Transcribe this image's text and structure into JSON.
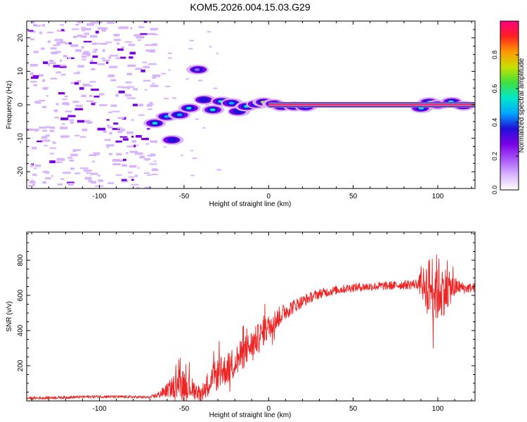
{
  "figure_title": "KOM5.2026.004.15.03.G29",
  "colors": {
    "snr_line": "#ee2222",
    "axis": "#000000",
    "colormap": [
      "#ffffff",
      "#d8b4ff",
      "#a855f7",
      "#7a00e8",
      "#1f10d8",
      "#00a8ff",
      "#00e8c8",
      "#40e040",
      "#c8e000",
      "#ff9900",
      "#ff2020",
      "#ff0080"
    ]
  },
  "chart_data": [
    {
      "type": "heatmap",
      "title": "KOM5.2026.004.15.03.G29",
      "xlabel": "Height of straight line (km)",
      "ylabel": "Frequency (Hz)",
      "xlim": [
        -143,
        122
      ],
      "ylim": [
        -25,
        25
      ],
      "x_ticks": [
        -100,
        -50,
        0,
        50,
        100
      ],
      "y_ticks": [
        -20,
        -10,
        0,
        10,
        20
      ],
      "colorbar": {
        "label": "Normalized spectral amplitude",
        "range": [
          0,
          1
        ],
        "ticks": [
          "0.0",
          "0.2",
          "0.4",
          "0.6",
          "0.8"
        ]
      },
      "tones": [
        {
          "x": -67,
          "f": -5.5,
          "amp": 0.55
        },
        {
          "x": -60,
          "f": -3.5,
          "amp": 0.45
        },
        {
          "x": -57,
          "f": -10.5,
          "amp": 0.35
        },
        {
          "x": -53,
          "f": -3.0,
          "amp": 0.45
        },
        {
          "x": -47,
          "f": -1.0,
          "amp": 0.5
        },
        {
          "x": -42,
          "f": 10.5,
          "amp": 0.2
        },
        {
          "x": -38,
          "f": 1.5,
          "amp": 0.4
        },
        {
          "x": -33,
          "f": -1.5,
          "amp": 0.55
        },
        {
          "x": -28,
          "f": 1.0,
          "amp": 0.5
        },
        {
          "x": -22,
          "f": 0.5,
          "amp": 0.45
        },
        {
          "x": -18,
          "f": -2.0,
          "amp": 0.4
        },
        {
          "x": -13,
          "f": -0.5,
          "amp": 0.5
        },
        {
          "x": -7,
          "f": 0.2,
          "amp": 0.55
        },
        {
          "x": -3,
          "f": 0.8,
          "amp": 0.7
        },
        {
          "x": 3,
          "f": 0.3,
          "amp": 0.65
        },
        {
          "x": 8,
          "f": -0.5,
          "amp": 0.55
        },
        {
          "x": 15,
          "f": -0.5,
          "amp": 0.5
        },
        {
          "x": 22,
          "f": -0.6,
          "amp": 0.45
        },
        {
          "x": 90,
          "f": -1.0,
          "amp": 0.5
        },
        {
          "x": 95,
          "f": 0.8,
          "amp": 0.5
        },
        {
          "x": 100,
          "f": 0.0,
          "amp": 0.55
        },
        {
          "x": 108,
          "f": 0.9,
          "amp": 0.5
        },
        {
          "x": 115,
          "f": -0.3,
          "amp": 0.45
        }
      ],
      "carrier": {
        "x_start": 0,
        "x_end": 122,
        "f": 0,
        "amp": 1.0
      }
    },
    {
      "type": "line",
      "xlabel": "Height of straight line (km)",
      "ylabel": "SNR (v/v)",
      "xlim": [
        -143,
        122
      ],
      "ylim": [
        0,
        960
      ],
      "x_ticks": [
        -100,
        -50,
        0,
        50,
        100
      ],
      "y_ticks": [
        200,
        400,
        600,
        800
      ],
      "series": [
        {
          "name": "SNR",
          "x": [
            -143,
            -120,
            -100,
            -80,
            -70,
            -65,
            -60,
            -55,
            -50,
            -45,
            -40,
            -35,
            -30,
            -25,
            -20,
            -15,
            -10,
            -5,
            0,
            5,
            10,
            15,
            20,
            25,
            30,
            40,
            50,
            60,
            70,
            80,
            88,
            92,
            96,
            100,
            104,
            108,
            112,
            116,
            122
          ],
          "y": [
            15,
            20,
            25,
            22,
            20,
            35,
            60,
            90,
            100,
            70,
            40,
            110,
            150,
            180,
            220,
            270,
            320,
            370,
            420,
            470,
            510,
            540,
            565,
            590,
            610,
            630,
            645,
            650,
            655,
            660,
            665,
            660,
            650,
            640,
            630,
            640,
            650,
            640,
            645
          ],
          "noise": [
            8,
            8,
            8,
            8,
            8,
            20,
            40,
            70,
            80,
            60,
            40,
            80,
            90,
            90,
            90,
            90,
            85,
            80,
            70,
            60,
            50,
            40,
            35,
            30,
            28,
            25,
            25,
            25,
            25,
            25,
            30,
            110,
            190,
            200,
            140,
            80,
            40,
            30,
            25
          ]
        }
      ]
    }
  ]
}
